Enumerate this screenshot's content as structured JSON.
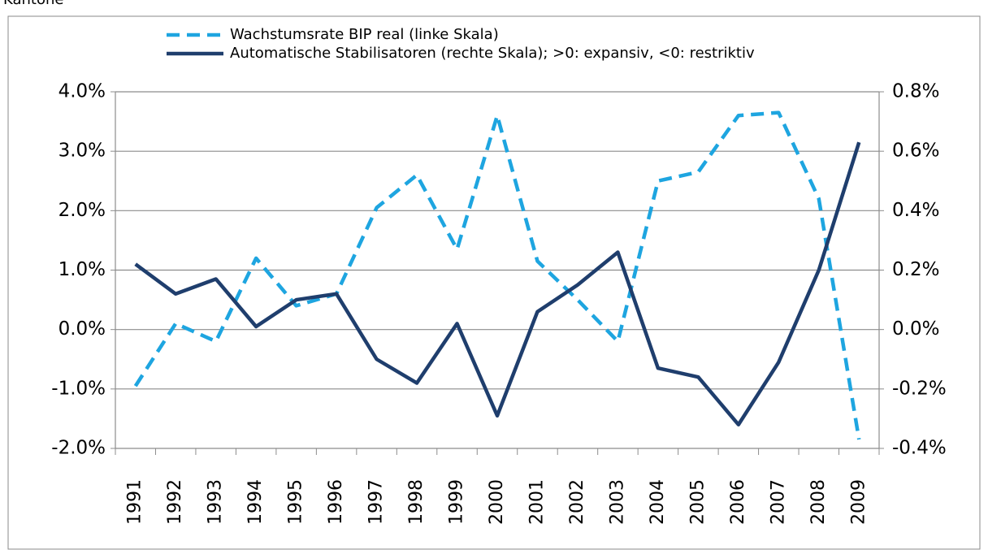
{
  "chart_data": {
    "type": "line",
    "title": "Kantone",
    "categories": [
      "1991",
      "1992",
      "1993",
      "1994",
      "1995",
      "1996",
      "1997",
      "1998",
      "1999",
      "2000",
      "2001",
      "2002",
      "2003",
      "2004",
      "2005",
      "2006",
      "2007",
      "2008",
      "2009"
    ],
    "series": [
      {
        "name": "Wachstumsrate BIP real (linke Skala)",
        "color": "#1ea5e0",
        "dashed": true,
        "values": [
          -0.95,
          0.1,
          -0.2,
          1.2,
          0.4,
          0.6,
          2.05,
          2.6,
          1.35,
          3.6,
          1.15,
          0.5,
          -0.2,
          2.5,
          2.65,
          3.6,
          3.65,
          2.2,
          -1.85
        ]
      },
      {
        "name": "Automatische Stabilisatoren (rechte Skala); >0: expansiv, <0: restriktiv",
        "color": "#1f3e6d",
        "axis": "y2",
        "values": [
          0.22,
          0.12,
          0.17,
          0.01,
          0.1,
          0.12,
          -0.1,
          -0.18,
          0.02,
          -0.29,
          0.06,
          0.15,
          0.26,
          -0.13,
          -0.16,
          -0.32,
          -0.11,
          0.2,
          0.63
        ]
      }
    ],
    "ylim": [
      -2,
      4
    ],
    "yticks": [
      {
        "value": -2,
        "label": "-2.0%"
      },
      {
        "value": -1,
        "label": "-1.0%"
      },
      {
        "value": 0,
        "label": "0.0%"
      },
      {
        "value": 1,
        "label": "1.0%"
      },
      {
        "value": 2,
        "label": "2.0%"
      },
      {
        "value": 3,
        "label": "3.0%"
      },
      {
        "value": 4,
        "label": "4.0%"
      }
    ],
    "y2lim": [
      -0.4,
      0.8
    ],
    "y2ticks": [
      {
        "value": -0.4,
        "label": "-0.4%"
      },
      {
        "value": -0.2,
        "label": "-0.2%"
      },
      {
        "value": 0,
        "label": "0.0%"
      },
      {
        "value": 0.2,
        "label": "0.2%"
      },
      {
        "value": 0.4,
        "label": "0.4%"
      },
      {
        "value": 0.6,
        "label": "0.6%"
      },
      {
        "value": 0.8,
        "label": "0.8%"
      }
    ],
    "grid": true
  }
}
